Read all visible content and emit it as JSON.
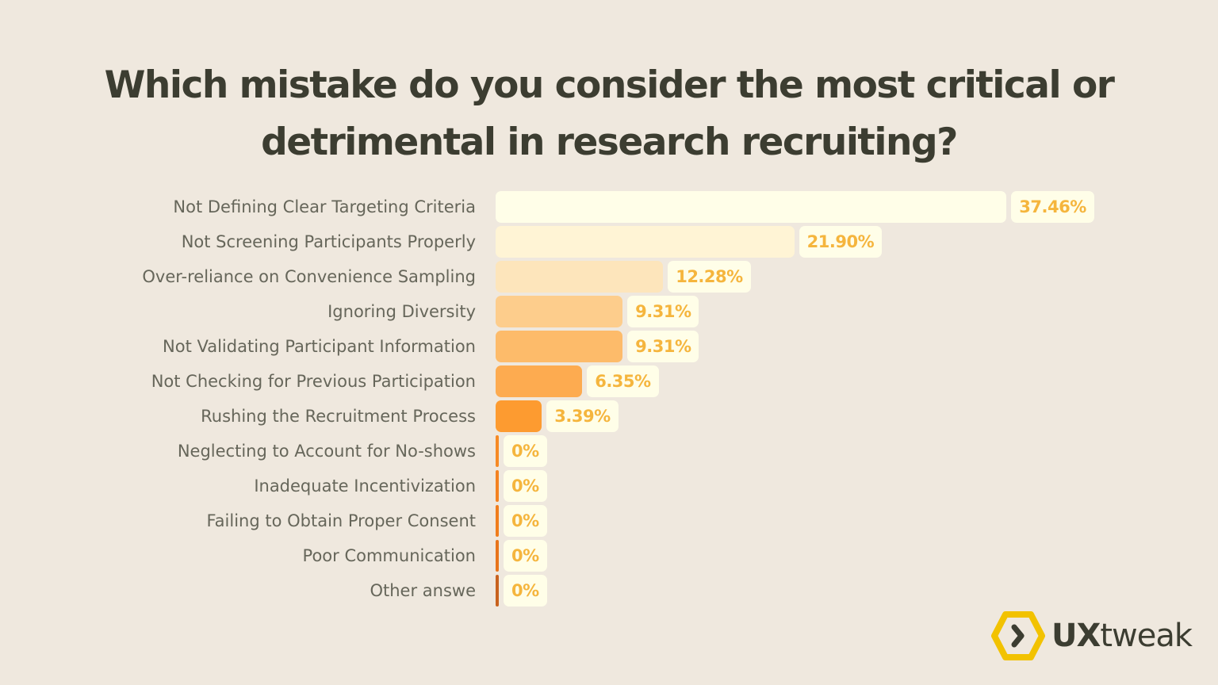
{
  "chart_data": {
    "type": "bar",
    "orientation": "horizontal",
    "title": "Which mistake do you consider the most critical or detrimental in research recruiting?",
    "categories": [
      "Not Defining Clear Targeting Criteria",
      "Not Screening Participants Properly",
      "Over-reliance on Convenience Sampling",
      "Ignoring Diversity",
      "Not Validating Participant Information",
      "Not Checking for Previous Participation",
      "Rushing the Recruitment Process",
      "Neglecting to Account for No-shows",
      "Inadequate Incentivization",
      "Failing to Obtain Proper Consent",
      "Poor Communication",
      "Other answe"
    ],
    "values": [
      37.46,
      21.9,
      12.28,
      9.31,
      9.31,
      6.35,
      3.39,
      0,
      0,
      0,
      0,
      0
    ],
    "labels": [
      "37.46%",
      "21.90%",
      "12.28%",
      "9.31%",
      "9.31%",
      "6.35%",
      "3.39%",
      "0%",
      "0%",
      "0%",
      "0%",
      "0%"
    ],
    "colors": [
      "#fffee8",
      "#fff4d5",
      "#fde5bb",
      "#fdcd8c",
      "#fdbb6a",
      "#fdab50",
      "#fd9b30",
      "#f78a24",
      "#f48220",
      "#f07d1c",
      "#e8741a",
      "#c8621e"
    ],
    "label_color": "#f5b53d",
    "grid": false,
    "legend": "none"
  },
  "logo": {
    "text_bold": "UX",
    "text_regular": "tweak",
    "accent": "#f2c200"
  }
}
